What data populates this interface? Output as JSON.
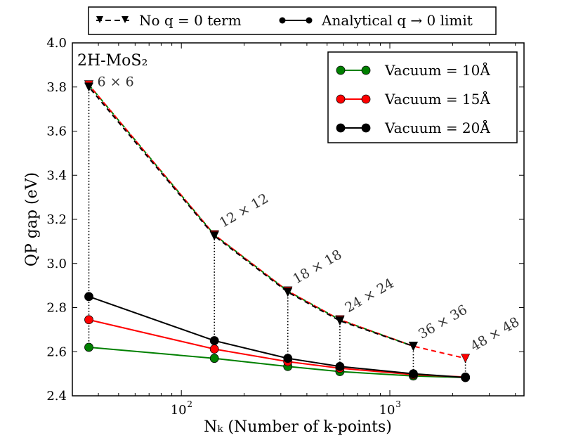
{
  "chart_data": {
    "type": "line",
    "x_scale": "log",
    "xlim": [
      30,
      4400
    ],
    "ylim": [
      2.4,
      4.0
    ],
    "xlabel": "Nₖ (Number of k-points)",
    "ylabel": "QP gap (eV)",
    "panel_label": "2H-MoS₂",
    "y_ticks": [
      {
        "value": 2.4,
        "label": "2.4"
      },
      {
        "value": 2.6,
        "label": "2.6"
      },
      {
        "value": 2.8,
        "label": "2.8"
      },
      {
        "value": 3.0,
        "label": "3.0"
      },
      {
        "value": 3.2,
        "label": "3.2"
      },
      {
        "value": 3.4,
        "label": "3.4"
      },
      {
        "value": 3.6,
        "label": "3.6"
      },
      {
        "value": 3.8,
        "label": "3.8"
      },
      {
        "value": 4.0,
        "label": "4.0"
      }
    ],
    "x_ticks": [
      {
        "value": 100,
        "base": "10",
        "exp": "2"
      },
      {
        "value": 1000,
        "base": "10",
        "exp": "3"
      }
    ],
    "x": [
      36,
      144,
      324,
      576,
      1296,
      2304
    ],
    "grid_labels": [
      "6 × 6",
      "12 × 12",
      "18 × 18",
      "24 × 24",
      "36 × 36",
      "48 × 48"
    ],
    "top_legend": [
      {
        "label": "No q = 0 term",
        "style": "dashed-triangle"
      },
      {
        "label": "Analytical q → 0 limit",
        "style": "solid-circle"
      }
    ],
    "series": [
      {
        "name": "Vacuum = 10Å",
        "color": "#008000",
        "marker": "circle",
        "values": [
          2.62,
          2.57,
          2.533,
          2.51,
          2.49,
          2.483
        ]
      },
      {
        "name": "Vacuum = 15Å",
        "color": "#ff0000",
        "marker": "circle",
        "values": [
          2.745,
          2.612,
          2.555,
          2.525,
          2.496,
          2.485
        ]
      },
      {
        "name": "Vacuum = 20Å",
        "color": "#000000",
        "marker": "circle",
        "values": [
          2.85,
          2.65,
          2.57,
          2.533,
          2.5,
          2.483
        ]
      }
    ],
    "no_q0_series": [
      {
        "name": "No q = 0 term (10Å)",
        "color": "#008000",
        "values": [
          3.81,
          3.13,
          2.875,
          2.745,
          2.625,
          null
        ]
      },
      {
        "name": "No q = 0 term (15Å)",
        "color": "#ff0000",
        "values": [
          3.81,
          3.13,
          2.875,
          2.745,
          2.625,
          2.57
        ]
      },
      {
        "name": "No q = 0 term (20Å)",
        "color": "#000000",
        "values": [
          3.8,
          3.125,
          2.87,
          2.74,
          2.625,
          null
        ]
      }
    ]
  }
}
